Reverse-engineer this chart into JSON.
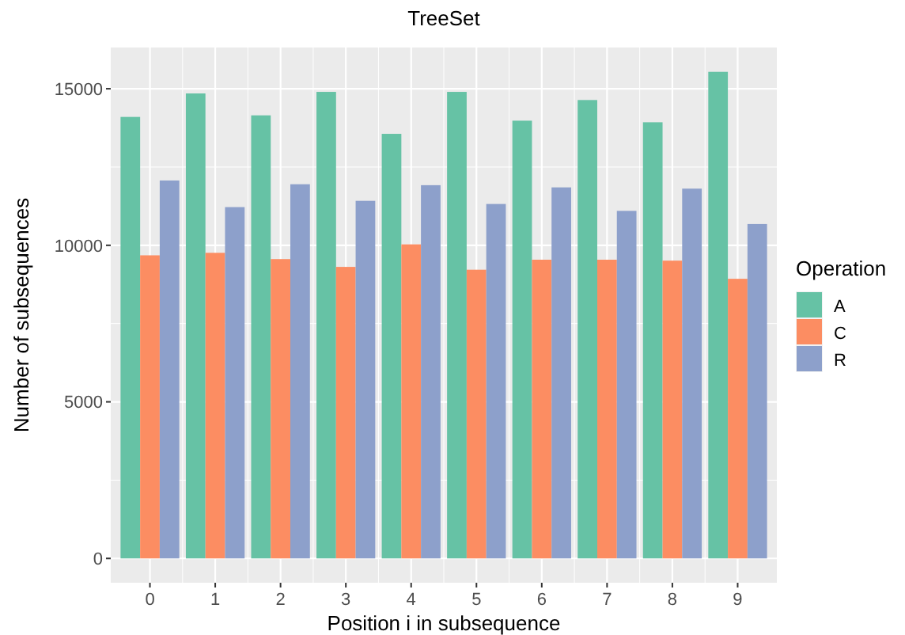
{
  "chart_data": {
    "type": "bar",
    "title": "TreeSet",
    "xlabel": "Position i in subsequence",
    "ylabel": "Number of subsequences",
    "legend_title": "Operation",
    "categories": [
      "0",
      "1",
      "2",
      "3",
      "4",
      "5",
      "6",
      "7",
      "8",
      "9"
    ],
    "series": [
      {
        "name": "A",
        "color": "#66c2a5",
        "values": [
          14100,
          14850,
          14150,
          14900,
          13560,
          14900,
          13980,
          14640,
          13930,
          15540
        ]
      },
      {
        "name": "C",
        "color": "#fc8d62",
        "values": [
          9680,
          9760,
          9560,
          9310,
          10030,
          9220,
          9540,
          9540,
          9510,
          8930
        ]
      },
      {
        "name": "R",
        "color": "#8da0cb",
        "values": [
          12070,
          11220,
          11950,
          11420,
          11920,
          11320,
          11850,
          11100,
          11810,
          10680
        ]
      }
    ],
    "ylim": [
      -777,
      16317
    ],
    "yticks": [
      0,
      5000,
      10000,
      15000
    ],
    "grid": true,
    "legend": "right"
  }
}
